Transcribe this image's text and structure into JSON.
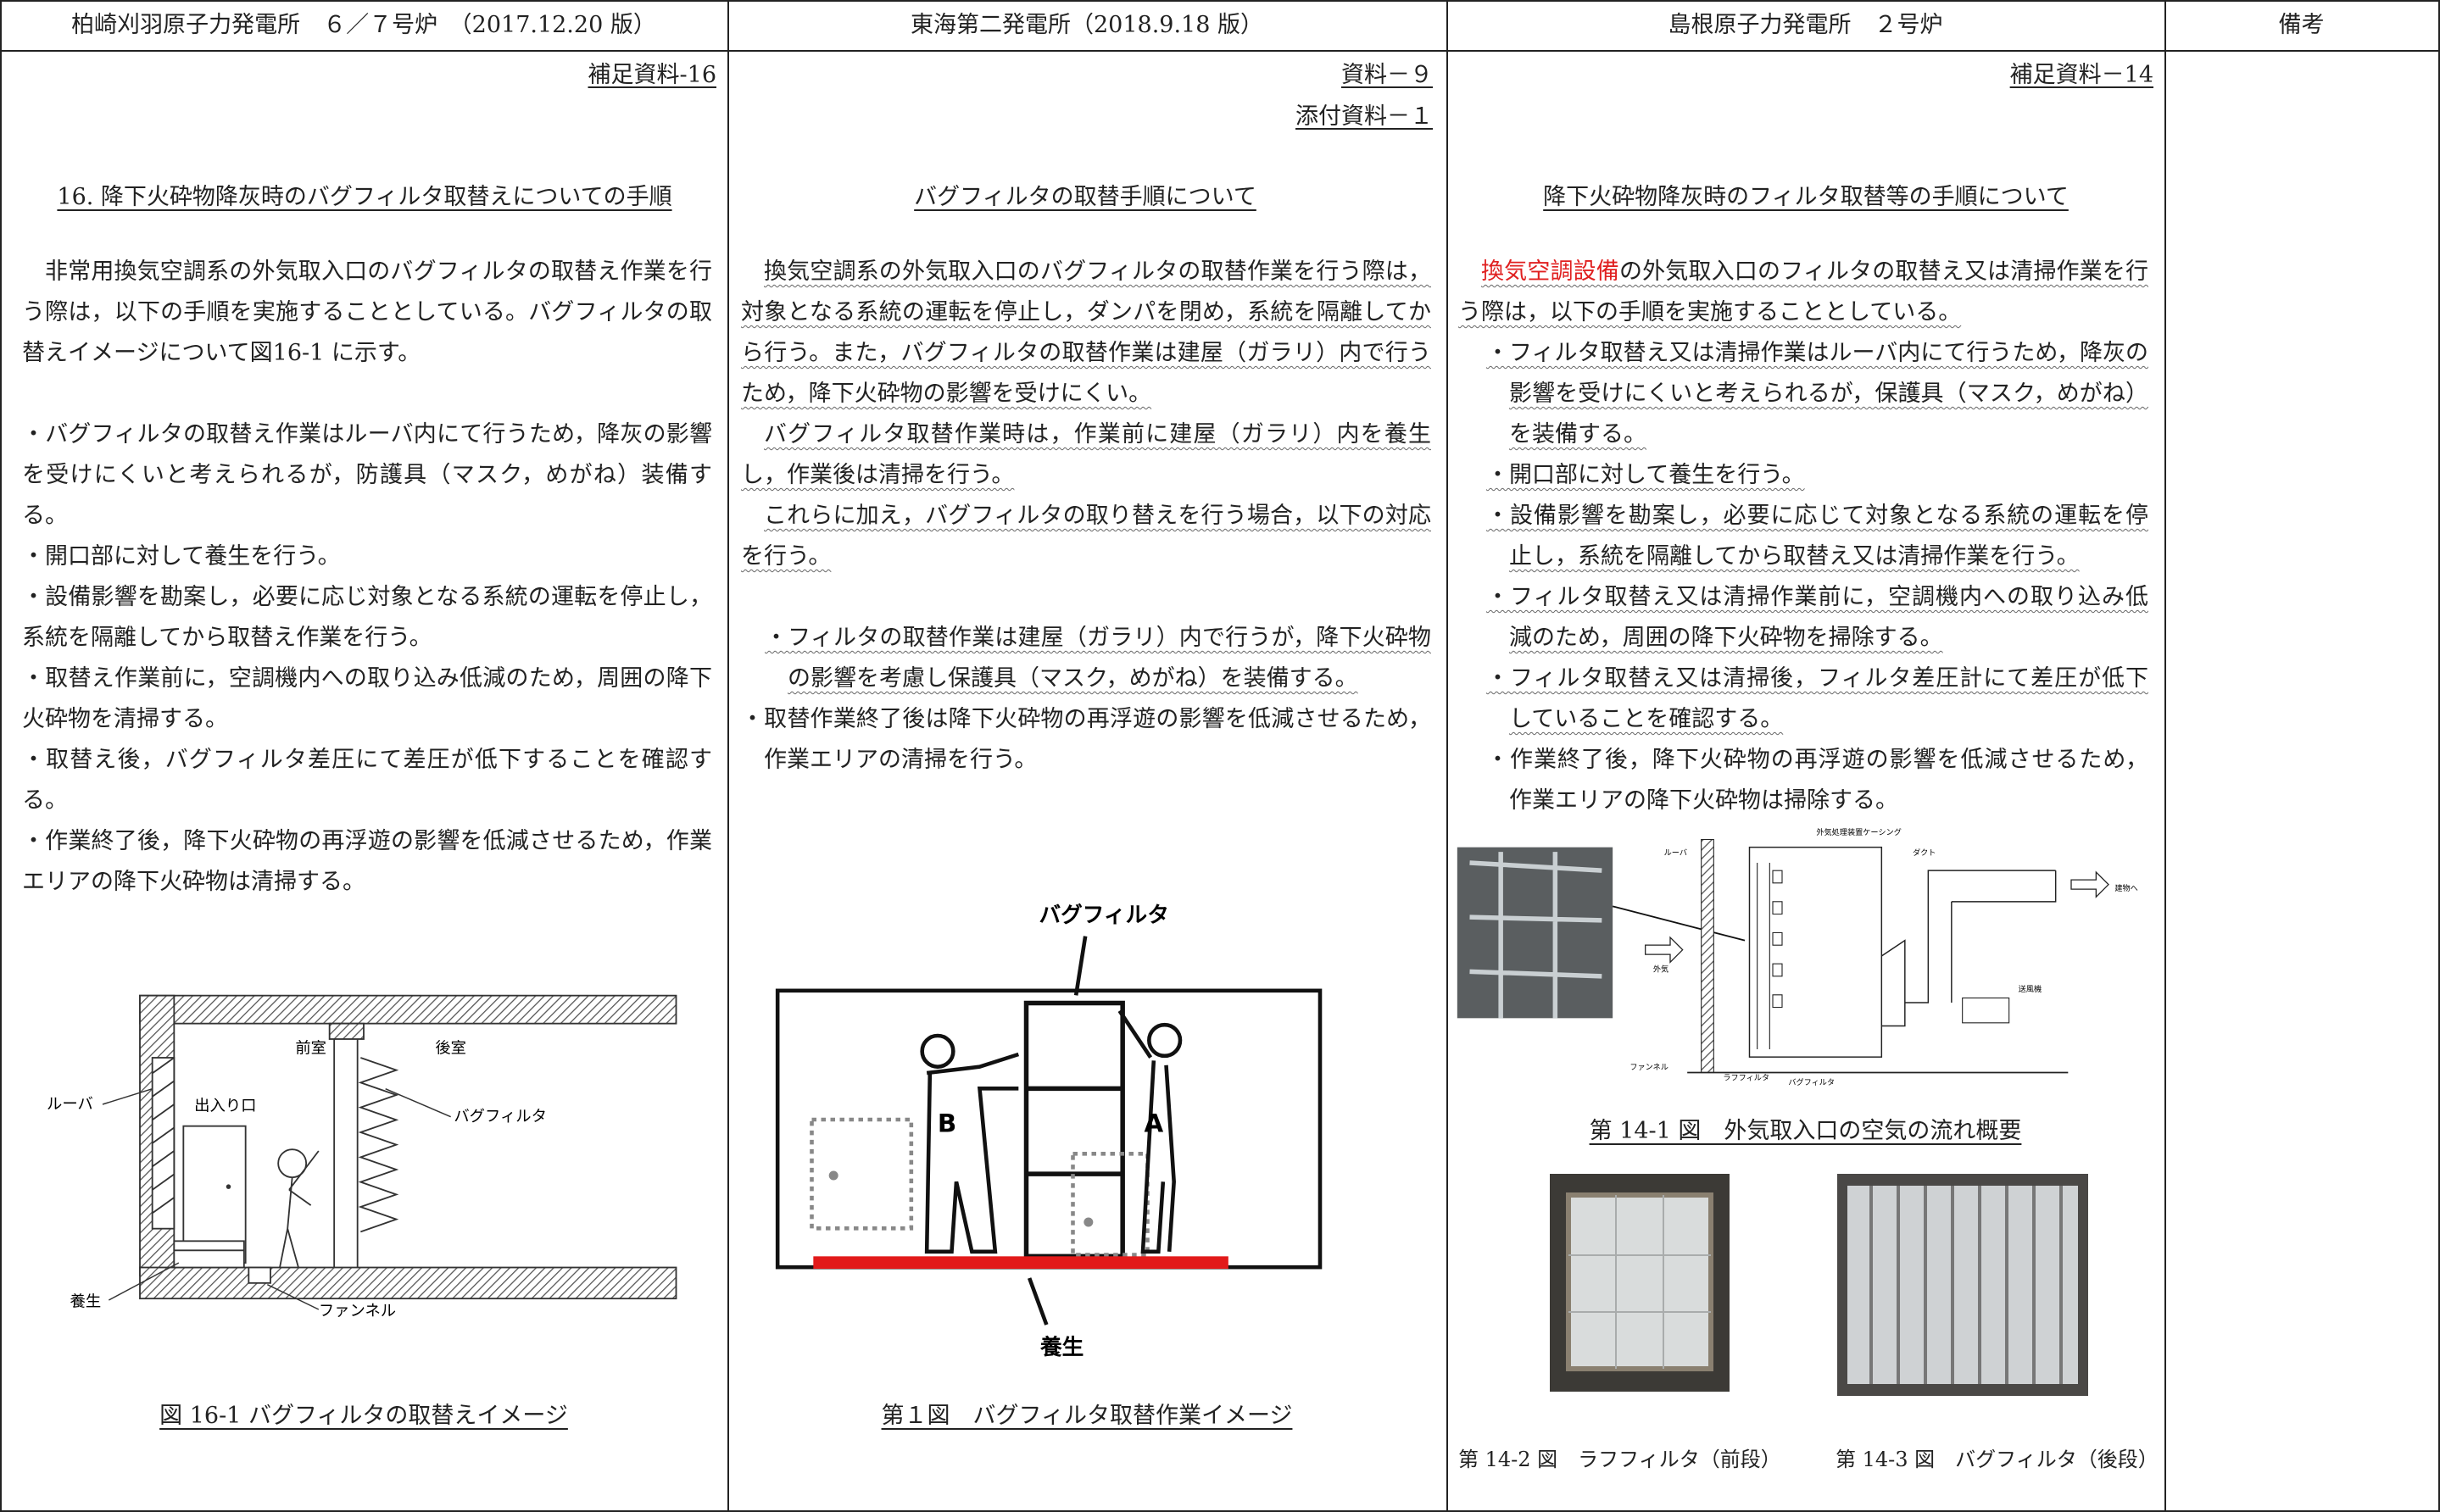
{
  "header": {
    "columns": [
      "柏崎刈羽原子力発電所　６／７号炉　（2017.12.20 版）",
      "東海第二発電所（2018.9.18 版）",
      "島根原子力発電所　２号炉",
      "備考"
    ]
  },
  "columns": [
    {
      "refs": [
        "補足資料-16"
      ],
      "title": "16. 降下火砕物降灰時のバグフィルタ取替えについての手順",
      "intro": "非常用換気空調系の外気取入口のバグフィルタの取替え作業を行う際は，以下の手順を実施することとしている。バグフィルタの取替えイメージについて図16-1 に示す。",
      "bullets": [
        "・バグフィルタの取替え作業はルーバ内にて行うため，降灰の影響を受けにくいと考えられるが，防護具（マスク，めがね）装備する。",
        "・開口部に対して養生を行う。",
        "・設備影響を勘案し，必要に応じ対象となる系統の運転を停止し，系統を隔離してから取替え作業を行う。",
        "・取替え作業前に，空調機内への取り込み低減のため，周囲の降下火砕物を清掃する。",
        "・取替え後，バグフィルタ差圧にて差圧が低下することを確認する。",
        "・作業終了後，降下火砕物の再浮遊の影響を低減させるため，作業エリアの降下火砕物は清掃する。"
      ],
      "figure": {
        "labels": [
          "前室",
          "後室",
          "ルーバ",
          "出入り口",
          "バグフィルタ",
          "養生",
          "ファンネル"
        ],
        "caption": "図 16-1 バグフィルタの取替えイメージ"
      }
    },
    {
      "refs": [
        "資料－９",
        "添付資料－１"
      ],
      "title": "バグフィルタの取替手順について",
      "paragraphs": [
        "換気空調系の外気取入口のバグフィルタの取替作業を行う際は，対象となる系統の運転を停止し，ダンパを閉め，系統を隔離してから行う。また，バグフィルタの取替作業は建屋（ガラリ）内で行うため，降下火砕物の影響を受けにくい。",
        "バグフィルタ取替作業時は，作業前に建屋（ガラリ）内を養生し，作業後は清掃を行う。",
        "これらに加え，バグフィルタの取り替えを行う場合，以下の対応を行う。"
      ],
      "bullets": [
        "・フィルタの取替作業は建屋（ガラリ）内で行うが，降下火砕物の影響を考慮し保護具（マスク，めがね）を装備する。",
        "・取替作業終了後は降下火砕物の再浮遊の影響を低減させるため，作業エリアの清掃を行う。"
      ],
      "figure": {
        "labels": [
          "バグフィルタ",
          "B",
          "A",
          "養生"
        ],
        "caption": "第１図　バグフィルタ取替作業イメージ"
      }
    },
    {
      "refs": [
        "補足資料－14"
      ],
      "title": "降下火砕物降灰時のフィルタ取替等の手順について",
      "intro_lead": "換気空調設備",
      "intro": "の外気取入口のフィルタの取替え又は清掃作業を行う際は，以下の手順を実施することとしている。",
      "bullets": [
        "・フィルタ取替え又は清掃作業はルーバ内にて行うため，降灰の影響を受けにくいと考えられるが，保護具（マスク，めがね）を装備する。",
        "・開口部に対して養生を行う。",
        "・設備影響を勘案し，必要に応じて対象となる系統の運転を停止し，系統を隔離してから取替え又は清掃作業を行う。",
        "・フィルタ取替え又は清掃作業前に，空調機内への取り込み低減のため，周囲の降下火砕物を掃除する。",
        "・フィルタ取替え又は清掃後，フィルタ差圧計にて差圧が低下していることを確認する。",
        "・作業終了後，降下火砕物の再浮遊の影響を低減させるため，作業エリアの降下火砕物は掃除する。"
      ],
      "figure": {
        "labels": [
          "外気処理装置ケーシング",
          "ダクト",
          "ルーバ",
          "建物へ",
          "外気",
          "送風機",
          "ファンネル",
          "ラフフィルタ",
          "バグフィルタ"
        ],
        "caption": "第 14-1 図　外気取入口の空気の流れ概要"
      },
      "photo_captions": [
        "第 14-2 図　ラフフィルタ（前段）",
        "第 14-3 図　バグフィルタ（後段）"
      ]
    },
    {}
  ]
}
